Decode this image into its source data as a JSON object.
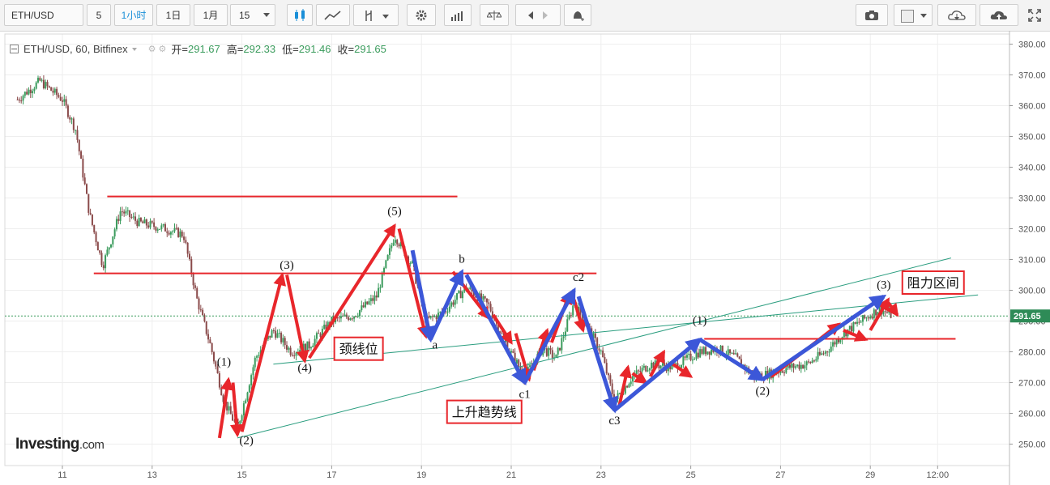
{
  "toolbar": {
    "symbol": "ETH/USD",
    "intervals": [
      "5",
      "1小时",
      "1日",
      "1月",
      "15"
    ],
    "active_interval": "1小时"
  },
  "legend": {
    "title": "ETH/USD, 60, Bitfinex",
    "open_label": "开",
    "open": "291.67",
    "high_label": "高",
    "high": "292.33",
    "low_label": "低",
    "low": "291.46",
    "close_label": "收",
    "close": "291.65"
  },
  "logo": {
    "brand": "Investing",
    "suffix": ".com"
  },
  "chart_data": {
    "type": "candlestick",
    "title": "ETH/USD, 60, Bitfinex",
    "y_ticks": [
      250,
      260,
      270,
      280,
      290,
      300,
      310,
      320,
      330,
      340,
      350,
      360,
      370,
      380
    ],
    "ylim": [
      246,
      383
    ],
    "x_ticks": [
      "11",
      "13",
      "15",
      "17",
      "19",
      "21",
      "23",
      "25",
      "27",
      "29",
      "12:00"
    ],
    "last_price": "291.65",
    "price_path": [
      [
        10.0,
        362
      ],
      [
        10.5,
        368
      ],
      [
        11.0,
        362
      ],
      [
        11.3,
        352
      ],
      [
        11.6,
        325
      ],
      [
        11.9,
        308
      ],
      [
        12.3,
        326
      ],
      [
        12.7,
        322
      ],
      [
        13.3,
        320
      ],
      [
        13.7,
        318
      ],
      [
        14.0,
        297
      ],
      [
        14.3,
        282
      ],
      [
        14.6,
        264
      ],
      [
        14.9,
        255
      ],
      [
        15.3,
        278
      ],
      [
        15.7,
        287
      ],
      [
        16.1,
        280
      ],
      [
        16.5,
        282
      ],
      [
        17.0,
        290
      ],
      [
        17.5,
        292
      ],
      [
        18.0,
        298
      ],
      [
        18.4,
        318
      ],
      [
        18.8,
        308
      ],
      [
        19.1,
        290
      ],
      [
        19.5,
        293
      ],
      [
        20.0,
        301
      ],
      [
        20.5,
        295
      ],
      [
        20.9,
        282
      ],
      [
        21.3,
        272
      ],
      [
        21.7,
        281
      ],
      [
        22.0,
        278
      ],
      [
        22.4,
        296
      ],
      [
        22.7,
        288
      ],
      [
        23.0,
        280
      ],
      [
        23.3,
        264
      ],
      [
        23.7,
        272
      ],
      [
        24.1,
        276
      ],
      [
        24.6,
        275
      ],
      [
        25.2,
        280
      ],
      [
        25.6,
        281
      ],
      [
        26.0,
        278
      ],
      [
        26.4,
        272
      ],
      [
        26.8,
        273
      ],
      [
        27.2,
        275
      ],
      [
        27.6,
        276
      ],
      [
        28.0,
        280
      ],
      [
        28.4,
        286
      ],
      [
        28.8,
        290
      ],
      [
        29.2,
        294
      ],
      [
        29.5,
        291.65
      ]
    ],
    "annotations": [
      {
        "text": "(1)",
        "x": 14.6,
        "y": 275.5
      },
      {
        "text": "(2)",
        "x": 15.1,
        "y": 250
      },
      {
        "text": "(3)",
        "x": 16.0,
        "y": 307
      },
      {
        "text": "(4)",
        "x": 16.4,
        "y": 273.5
      },
      {
        "text": "(5)",
        "x": 18.4,
        "y": 324.5
      },
      {
        "text": "a",
        "x": 19.3,
        "y": 281
      },
      {
        "text": "b",
        "x": 19.9,
        "y": 309
      },
      {
        "text": "c1",
        "x": 21.3,
        "y": 265
      },
      {
        "text": "c2",
        "x": 22.5,
        "y": 303
      },
      {
        "text": "c3",
        "x": 23.3,
        "y": 256.5
      },
      {
        "text": "(1)",
        "x": 25.2,
        "y": 289
      },
      {
        "text": "(2)",
        "x": 26.6,
        "y": 266
      },
      {
        "text": "(3)",
        "x": 29.3,
        "y": 300.5
      }
    ],
    "labels_boxed": [
      {
        "text": "颈线位",
        "x": 17.6,
        "y": 281
      },
      {
        "text": "上升趋势线",
        "x": 20.4,
        "y": 260.5
      },
      {
        "text": "阻力区间",
        "x": 30.4,
        "y": 302.5
      }
    ],
    "horizontal_lines": [
      {
        "y": 330.5,
        "x_from": 12.0,
        "x_to": 19.8
      },
      {
        "y": 305.5,
        "x_from": 11.7,
        "x_to": 22.9
      },
      {
        "y": 284.2,
        "x_from": 25.3,
        "x_to": 30.9
      }
    ],
    "trend_lines": [
      {
        "from": [
          15.7,
          276
        ],
        "to": [
          31.4,
          298.5
        ]
      },
      {
        "from": [
          14.9,
          252
        ],
        "to": [
          30.8,
          310.5
        ]
      }
    ],
    "wave_arrows_red": [
      [
        [
          14.5,
          252
        ],
        [
          14.7,
          271
        ]
      ],
      [
        [
          14.8,
          270
        ],
        [
          14.9,
          253
        ]
      ],
      [
        [
          15.0,
          254
        ],
        [
          15.9,
          305
        ]
      ],
      [
        [
          16.0,
          305
        ],
        [
          16.4,
          277
        ]
      ],
      [
        [
          16.5,
          278
        ],
        [
          18.4,
          321
        ]
      ],
      [
        [
          18.5,
          320
        ],
        [
          19.1,
          285
        ]
      ],
      [
        [
          19.7,
          306
        ],
        [
          20.5,
          291
        ]
      ],
      [
        [
          20.6,
          292
        ],
        [
          21.0,
          283
        ]
      ],
      [
        [
          21.1,
          286
        ],
        [
          21.4,
          271
        ]
      ],
      [
        [
          21.5,
          274
        ],
        [
          21.8,
          287
        ]
      ],
      [
        [
          21.9,
          283
        ],
        [
          22.3,
          299
        ]
      ],
      [
        [
          22.4,
          297
        ],
        [
          22.6,
          287
        ]
      ],
      [
        [
          23.4,
          262
        ],
        [
          23.6,
          275
        ]
      ],
      [
        [
          23.7,
          273
        ],
        [
          24.0,
          270
        ]
      ],
      [
        [
          24.1,
          272
        ],
        [
          24.4,
          280
        ]
      ],
      [
        [
          24.6,
          276
        ],
        [
          25.0,
          272
        ]
      ],
      [
        [
          26.8,
          272
        ],
        [
          28.3,
          289
        ]
      ],
      [
        [
          28.4,
          287
        ],
        [
          28.9,
          284
        ]
      ],
      [
        [
          29.0,
          287
        ],
        [
          29.4,
          297
        ]
      ],
      [
        [
          29.4,
          296
        ],
        [
          29.6,
          292
        ]
      ]
    ],
    "wave_arrows_blue": [
      [
        [
          18.8,
          313
        ],
        [
          19.2,
          284
        ]
      ],
      [
        [
          19.2,
          284
        ],
        [
          19.9,
          306
        ]
      ],
      [
        [
          20.0,
          305
        ],
        [
          21.3,
          270
        ]
      ],
      [
        [
          21.3,
          270
        ],
        [
          22.4,
          300
        ]
      ],
      [
        [
          22.5,
          298
        ],
        [
          23.3,
          261
        ]
      ],
      [
        [
          23.3,
          261
        ],
        [
          25.2,
          284
        ]
      ],
      [
        [
          25.2,
          284
        ],
        [
          26.6,
          271
        ]
      ],
      [
        [
          26.6,
          271
        ],
        [
          29.3,
          298
        ]
      ]
    ],
    "colors": {
      "up": "#3a9b5c",
      "down": "#8a4a4a",
      "red": "#e8262b",
      "blue": "#3c57d8",
      "trend": "#2a9d7f",
      "axis_label": "#2e8b57"
    }
  }
}
